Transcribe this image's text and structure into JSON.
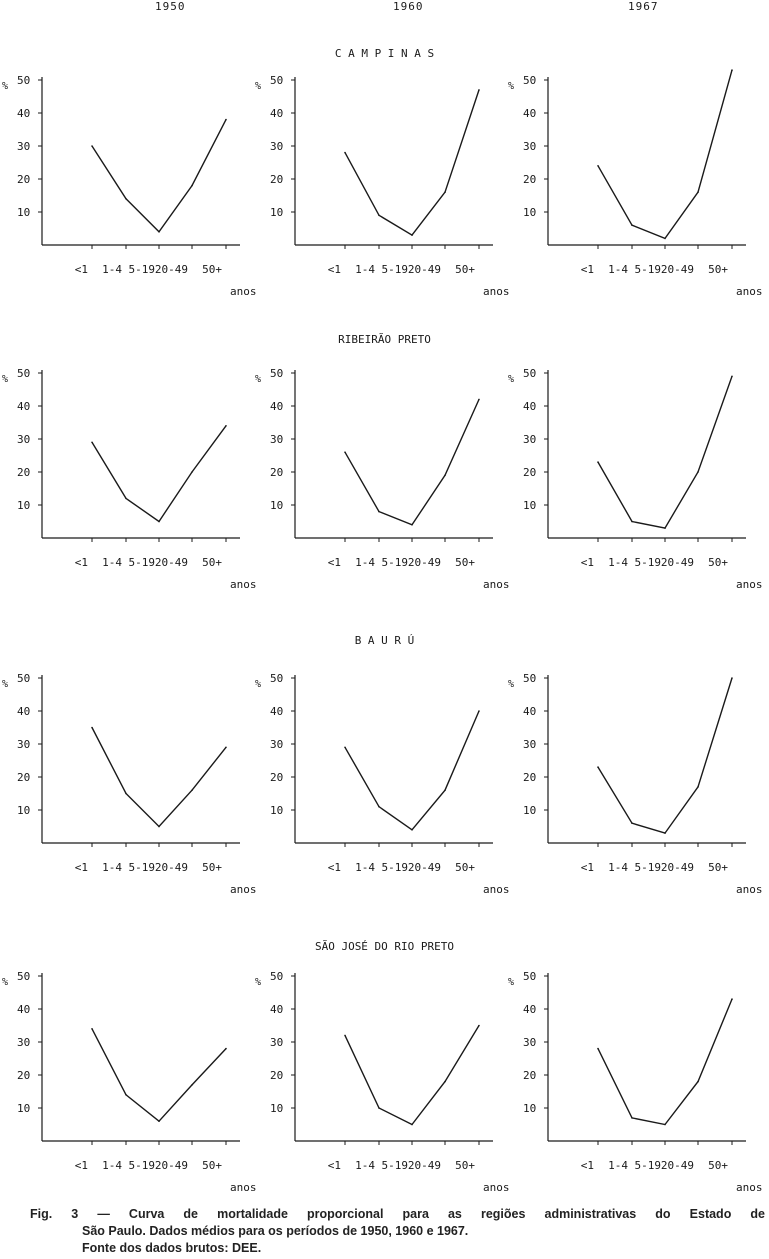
{
  "years": [
    "1950",
    "1960",
    "1967"
  ],
  "caption": {
    "line1": "Fig. 3 — Curva de mortalidade proporcional para as regiões administrativas do Estado de",
    "line2": "São Paulo. Dados médios para os períodos de 1950, 1960 e 1967.",
    "line3": "Fonte dos dados brutos: DEE."
  },
  "axis": {
    "y_unit": "%",
    "y_ticks": [
      10,
      20,
      30,
      40,
      50
    ],
    "x_tick_labels": [
      "<1",
      "1-4",
      "5-19",
      "20-49",
      "50+"
    ],
    "x_unit": "anos"
  },
  "regions": [
    {
      "title": "C A M P I N A S"
    },
    {
      "title": "RIBEIRÃO  PRETO"
    },
    {
      "title": "B A U R Ú"
    },
    {
      "title": "SÃO JOSÉ DO RIO PRETO"
    }
  ],
  "chart_data": [
    {
      "type": "line",
      "region": "C A M P I N A S",
      "period": "1950",
      "categories": [
        "<1",
        "1-4",
        "5-19",
        "20-49",
        "50+"
      ],
      "values": [
        30,
        14,
        4,
        18,
        38
      ],
      "ylabel": "%",
      "xlabel": "anos",
      "ylim": [
        0,
        50
      ]
    },
    {
      "type": "line",
      "region": "C A M P I N A S",
      "period": "1960",
      "categories": [
        "<1",
        "1-4",
        "5-19",
        "20-49",
        "50+"
      ],
      "values": [
        28,
        9,
        3,
        16,
        47
      ],
      "ylabel": "%",
      "xlabel": "anos",
      "ylim": [
        0,
        50
      ]
    },
    {
      "type": "line",
      "region": "C A M P I N A S",
      "period": "1967",
      "categories": [
        "<1",
        "1-4",
        "5-19",
        "20-49",
        "50+"
      ],
      "values": [
        24,
        6,
        2,
        16,
        53
      ],
      "ylabel": "%",
      "xlabel": "anos",
      "ylim": [
        0,
        50
      ]
    },
    {
      "type": "line",
      "region": "RIBEIRÃO  PRETO",
      "period": "1950",
      "categories": [
        "<1",
        "1-4",
        "5-19",
        "20-49",
        "50+"
      ],
      "values": [
        29,
        12,
        5,
        20,
        34
      ],
      "ylabel": "%",
      "xlabel": "anos",
      "ylim": [
        0,
        50
      ]
    },
    {
      "type": "line",
      "region": "RIBEIRÃO  PRETO",
      "period": "1960",
      "categories": [
        "<1",
        "1-4",
        "5-19",
        "20-49",
        "50+"
      ],
      "values": [
        26,
        8,
        4,
        19,
        42
      ],
      "ylabel": "%",
      "xlabel": "anos",
      "ylim": [
        0,
        50
      ]
    },
    {
      "type": "line",
      "region": "RIBEIRÃO  PRETO",
      "period": "1967",
      "categories": [
        "<1",
        "1-4",
        "5-19",
        "20-49",
        "50+"
      ],
      "values": [
        23,
        5,
        3,
        20,
        49
      ],
      "ylabel": "%",
      "xlabel": "anos",
      "ylim": [
        0,
        50
      ]
    },
    {
      "type": "line",
      "region": "B A U R Ú",
      "period": "1950",
      "categories": [
        "<1",
        "1-4",
        "5-19",
        "20-49",
        "50+"
      ],
      "values": [
        35,
        15,
        5,
        16,
        29
      ],
      "ylabel": "%",
      "xlabel": "anos",
      "ylim": [
        0,
        50
      ]
    },
    {
      "type": "line",
      "region": "B A U R Ú",
      "period": "1960",
      "categories": [
        "<1",
        "1-4",
        "5-19",
        "20-49",
        "50+"
      ],
      "values": [
        29,
        11,
        4,
        16,
        40
      ],
      "ylabel": "%",
      "xlabel": "anos",
      "ylim": [
        0,
        50
      ]
    },
    {
      "type": "line",
      "region": "B A U R Ú",
      "period": "1967",
      "categories": [
        "<1",
        "1-4",
        "5-19",
        "20-49",
        "50+"
      ],
      "values": [
        23,
        6,
        3,
        17,
        50
      ],
      "ylabel": "%",
      "xlabel": "anos",
      "ylim": [
        0,
        50
      ]
    },
    {
      "type": "line",
      "region": "SÃO JOSÉ DO RIO PRETO",
      "period": "1950",
      "categories": [
        "<1",
        "1-4",
        "5-19",
        "20-49",
        "50+"
      ],
      "values": [
        34,
        14,
        6,
        17,
        28
      ],
      "ylabel": "%",
      "xlabel": "anos",
      "ylim": [
        0,
        50
      ]
    },
    {
      "type": "line",
      "region": "SÃO JOSÉ DO RIO PRETO",
      "period": "1960",
      "categories": [
        "<1",
        "1-4",
        "5-19",
        "20-49",
        "50+"
      ],
      "values": [
        32,
        10,
        5,
        18,
        35
      ],
      "ylabel": "%",
      "xlabel": "anos",
      "ylim": [
        0,
        50
      ]
    },
    {
      "type": "line",
      "region": "SÃO JOSÉ DO RIO PRETO",
      "period": "1967",
      "categories": [
        "<1",
        "1-4",
        "5-19",
        "20-49",
        "50+"
      ],
      "values": [
        28,
        7,
        5,
        18,
        43
      ],
      "ylabel": "%",
      "xlabel": "anos",
      "ylim": [
        0,
        50
      ]
    }
  ]
}
